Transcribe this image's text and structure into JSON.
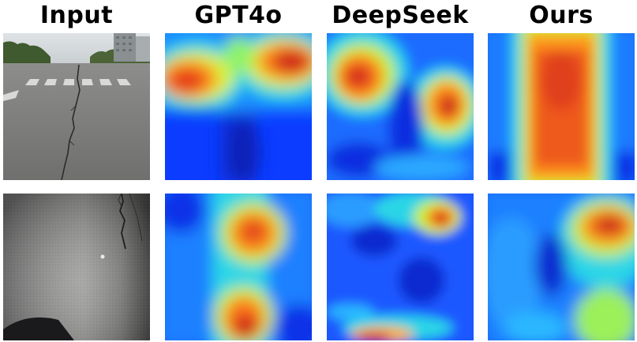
{
  "columns": [
    {
      "title": "Input"
    },
    {
      "title": "GPT4o"
    },
    {
      "title": "DeepSeek"
    },
    {
      "title": "Ours"
    }
  ]
}
